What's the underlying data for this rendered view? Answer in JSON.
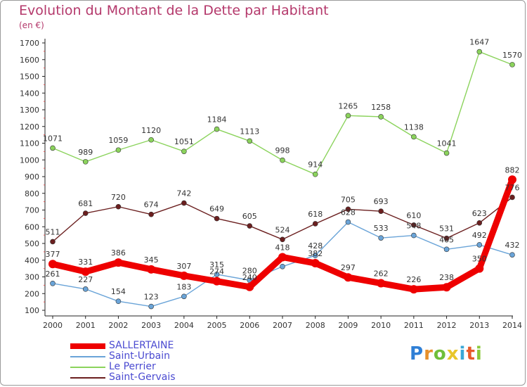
{
  "title": "Evolution du Montant de la Dette par Habitant",
  "unit": "(en €)",
  "logo_text": "Proxiti",
  "chart_data": {
    "type": "line",
    "x": [
      "2000",
      "2001",
      "2002",
      "2003",
      "2004",
      "2005",
      "2006",
      "2007",
      "2008",
      "2009",
      "2010",
      "2011",
      "2012",
      "2013",
      "2014"
    ],
    "ylim": [
      100,
      1700
    ],
    "yticks": [
      100,
      200,
      300,
      400,
      500,
      600,
      700,
      800,
      900,
      1000,
      1100,
      1200,
      1300,
      1400,
      1500,
      1600,
      1700
    ],
    "grid": false,
    "legend_position": "bottom-left",
    "series": [
      {
        "name": "SALLERTAINE",
        "color": "#ee0000",
        "values": [
          377,
          331,
          386,
          345,
          307,
          274,
          240,
          418,
          382,
          297,
          262,
          226,
          238,
          350,
          882
        ],
        "labels": [
          "377",
          "331",
          "386",
          "345",
          "307",
          "274",
          "240",
          "418",
          "382",
          "297",
          "262",
          "226",
          "238",
          "350",
          "882"
        ]
      },
      {
        "name": "Saint-Urbain",
        "color": "#6aa4d8",
        "values": [
          261,
          227,
          154,
          123,
          183,
          315,
          280,
          362,
          428,
          628,
          533,
          548,
          465,
          492,
          432
        ],
        "labels": [
          "261",
          "227",
          "154",
          "123",
          "183",
          "315",
          "280",
          "",
          "428",
          "628",
          "533",
          "548",
          "465",
          "492",
          "432"
        ]
      },
      {
        "name": "Le Perrier",
        "color": "#8bd35c",
        "values": [
          1071,
          989,
          1059,
          1120,
          1051,
          1184,
          1113,
          998,
          914,
          1265,
          1258,
          1138,
          1041,
          1647,
          1570
        ],
        "labels": [
          "1071",
          "989",
          "1059",
          "1120",
          "1051",
          "1184",
          "1113",
          "998",
          "914",
          "1265",
          "1258",
          "1138",
          "1041",
          "1647",
          "1570"
        ]
      },
      {
        "name": "Saint-Gervais",
        "color": "#6b1f1f",
        "values": [
          511,
          681,
          720,
          674,
          742,
          649,
          605,
          524,
          618,
          705,
          693,
          610,
          531,
          623,
          776
        ],
        "labels": [
          "511",
          "681",
          "720",
          "674",
          "742",
          "649",
          "605",
          "524",
          "618",
          "705",
          "693",
          "610",
          "531",
          "623",
          "776"
        ]
      }
    ]
  }
}
